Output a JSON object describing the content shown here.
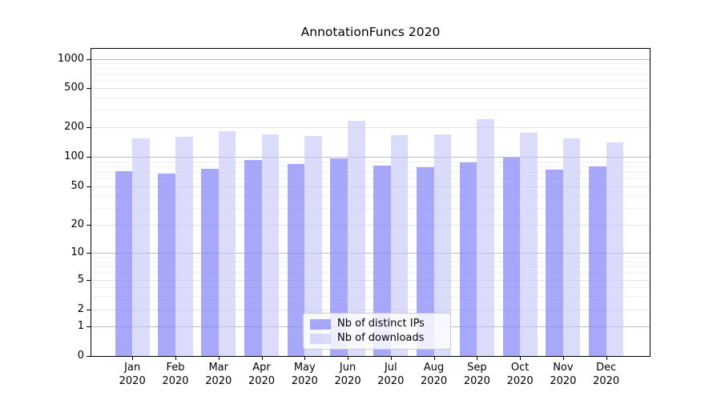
{
  "chart_data": {
    "type": "bar",
    "title": "AnnotationFuncs 2020",
    "categories": [
      "Jan",
      "Feb",
      "Mar",
      "Apr",
      "May",
      "Jun",
      "Jul",
      "Aug",
      "Sep",
      "Oct",
      "Nov",
      "Dec"
    ],
    "year_label": "2020",
    "series": [
      {
        "name": "Nb of distinct IPs",
        "color": "rgba(136,136,248,0.73)",
        "values": [
          71,
          67,
          75,
          93,
          84,
          96,
          81,
          79,
          87,
          99,
          74,
          80
        ]
      },
      {
        "name": "Nb of downloads",
        "color": "rgba(195,195,250,0.60)",
        "values": [
          155,
          160,
          181,
          169,
          163,
          232,
          165,
          168,
          242,
          176,
          153,
          140
        ]
      }
    ],
    "xlabel": "",
    "ylabel": "",
    "yscale": "symlog",
    "y_ticks": [
      0,
      1,
      2,
      5,
      10,
      20,
      50,
      100,
      200,
      500,
      1000
    ],
    "ylim": [
      0,
      1300
    ],
    "grid": true,
    "legend_position": "lower center"
  },
  "colors": {
    "background": "#ffffff",
    "axis": "#000000",
    "text": "#000000",
    "grid_major": "#bcbcbc",
    "grid_mid": "#e3e3e3",
    "grid_minor": "#f0f0f0",
    "legend_border": "#cccccc"
  }
}
